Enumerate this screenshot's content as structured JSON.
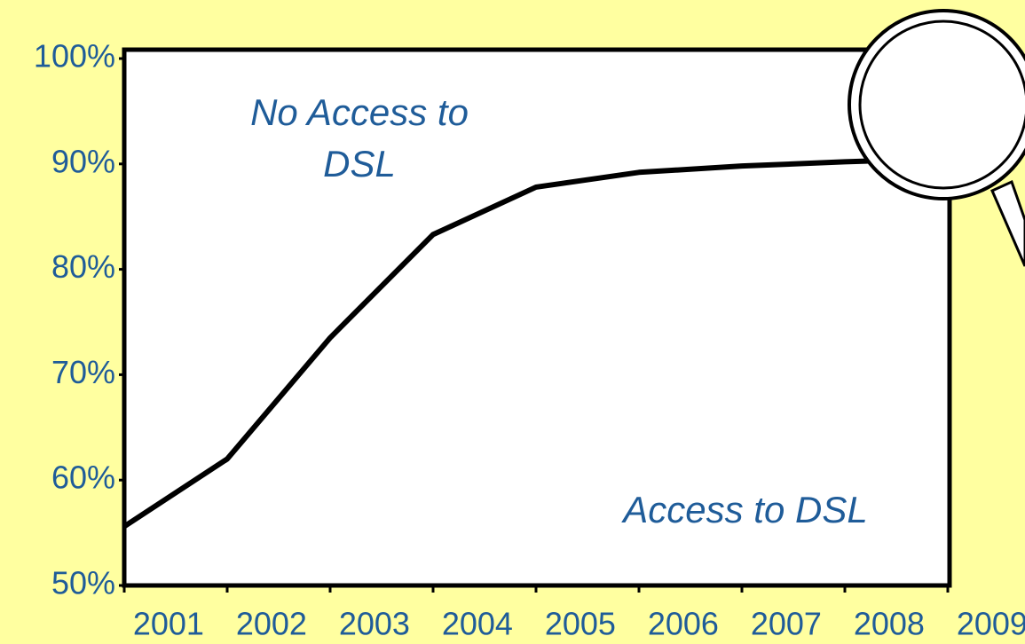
{
  "chart_data": {
    "type": "line",
    "x": [
      2001,
      2002,
      2003,
      2004,
      2005,
      2006,
      2007,
      2008,
      2009
    ],
    "series": [
      {
        "color": "#000000",
        "values": [
          55.6,
          62,
          73.5,
          83.3,
          87.8,
          89.2,
          89.8,
          90.2,
          90.5
        ]
      }
    ],
    "xlim": [
      2001,
      2009
    ],
    "xticks": [
      2001,
      2002,
      2003,
      2004,
      2005,
      2006,
      2007,
      2008,
      2009
    ],
    "ylim": [
      50,
      100
    ],
    "yticks": [
      {
        "value": 50,
        "label": "50%"
      },
      {
        "value": 60,
        "label": "60%"
      },
      {
        "value": 70,
        "label": "70%"
      },
      {
        "value": 80,
        "label": "80%"
      },
      {
        "value": 90,
        "label": "90%"
      },
      {
        "value": 100,
        "label": "100%"
      }
    ],
    "annotations": [
      {
        "lines": [
          "No Access to",
          "DSL"
        ]
      },
      {
        "lines": [
          "Access to DSL"
        ]
      }
    ]
  }
}
